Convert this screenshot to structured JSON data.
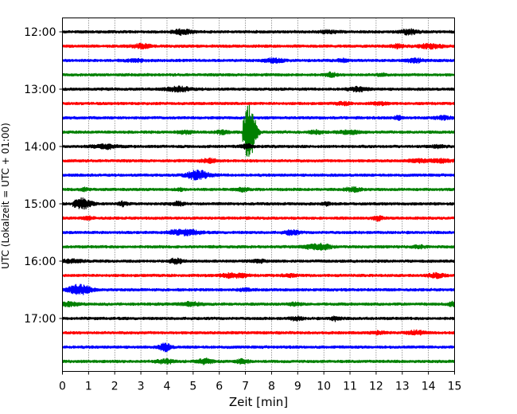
{
  "chart_data": {
    "type": "line",
    "title": "",
    "xlabel": "Zeit  [min]",
    "ylabel": "UTC (Lokalzeit = UTC + 01:00)",
    "xlim": [
      0,
      15
    ],
    "x_ticks": [
      "0",
      "1",
      "2",
      "3",
      "4",
      "5",
      "6",
      "7",
      "8",
      "9",
      "10",
      "11",
      "12",
      "13",
      "14",
      "15"
    ],
    "y_ticks": [
      "12:00",
      "13:00",
      "14:00",
      "15:00",
      "16:00",
      "17:00"
    ],
    "trace_interval_min": 15,
    "trace_start": "12:00",
    "trace_count": 24,
    "trace_colors": [
      "#000000",
      "#ff0000",
      "#0000ff",
      "#008000"
    ],
    "grid": "vertical dotted",
    "events": [
      {
        "trace_start": "13:45",
        "minute_start": 6.9,
        "minute_end": 7.6,
        "relative_amplitude": 1.0
      },
      {
        "trace_start": "15:00",
        "minute_start": 0.4,
        "minute_end": 1.4,
        "relative_amplitude": 0.18
      }
    ]
  }
}
